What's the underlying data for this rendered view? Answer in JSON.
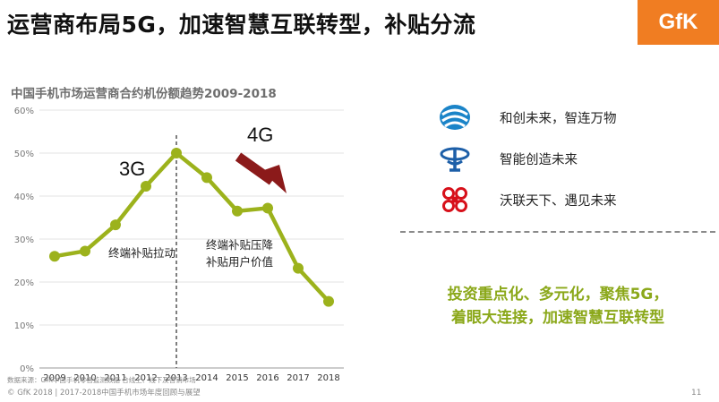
{
  "slide": {
    "title": "运营商布局5G，加速智慧互联转型，补贴分流",
    "logo": "GfK",
    "page_number": "11"
  },
  "chart_data": {
    "type": "line",
    "title": "中国手机市场运营商合约机份额趋势2009-2018",
    "categories": [
      "2009",
      "2010",
      "2011",
      "2012",
      "2013",
      "2014",
      "2015",
      "2016",
      "2017",
      "2018"
    ],
    "values": [
      26,
      27.2,
      33.3,
      42.3,
      50,
      44.3,
      36.5,
      37.2,
      23.2,
      15.5
    ],
    "y_ticks": [
      "0%",
      "10%",
      "20%",
      "30%",
      "40%",
      "50%",
      "60%"
    ],
    "ylim": [
      0,
      60
    ],
    "grid": true,
    "series_color": "#9cb21c",
    "divider_at": "2013",
    "annotations": {
      "era_3g": "3G",
      "era_4g": "4G",
      "subsidy_pull": "终端补贴拉动",
      "subsidy_drop_line1": "终端补贴压降",
      "subsidy_drop_line2": "补贴用户价值"
    }
  },
  "brands": [
    {
      "icon": "china-mobile-logo-icon",
      "slogan": "和创未来，智连万物"
    },
    {
      "icon": "china-telecom-logo-icon",
      "slogan": "智能创造未来"
    },
    {
      "icon": "china-unicom-logo-icon",
      "slogan": "沃联天下、遇见未来"
    }
  ],
  "highlight": {
    "line1": "投资重点化、多元化，聚焦5G，",
    "line2": "着眼大连接，加速智慧互联转型"
  },
  "source": "数据来源：GfK中国手机零售监测数据 合线上、线下及营销市场",
  "footer": "© GfK 2018 | 2017-2018中国手机市场年度回顾与展望",
  "colors": {
    "accent_green": "#8ba81a",
    "arrow_red": "#8b1a1a",
    "logo_orange": "#f07d22"
  }
}
